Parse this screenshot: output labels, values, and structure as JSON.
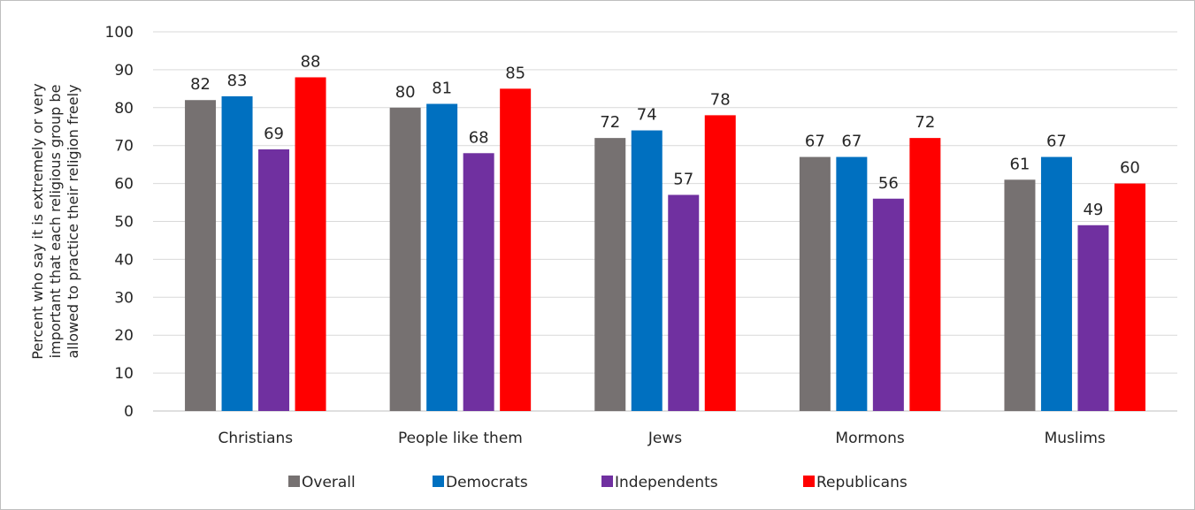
{
  "chart_data": {
    "type": "bar",
    "title": "",
    "xlabel": "",
    "ylabel_lines": [
      "Percent who say it is extremely or very",
      "important that each religious group be",
      "allowed to practice their religion freely"
    ],
    "ylim": [
      0,
      100
    ],
    "yticks": [
      0,
      10,
      20,
      30,
      40,
      50,
      60,
      70,
      80,
      90,
      100
    ],
    "grid": true,
    "legend_position": "bottom",
    "categories": [
      "Christians",
      "People like them",
      "Jews",
      "Mormons",
      "Muslims"
    ],
    "series": [
      {
        "name": "Overall",
        "color": "#767171",
        "values": [
          82,
          80,
          72,
          67,
          61
        ]
      },
      {
        "name": "Democrats",
        "color": "#0070c0",
        "values": [
          83,
          81,
          74,
          67,
          67
        ]
      },
      {
        "name": "Independents",
        "color": "#7030a0",
        "values": [
          69,
          68,
          57,
          56,
          49
        ]
      },
      {
        "name": "Republicans",
        "color": "#ff0000",
        "values": [
          88,
          85,
          78,
          72,
          60
        ]
      }
    ]
  }
}
